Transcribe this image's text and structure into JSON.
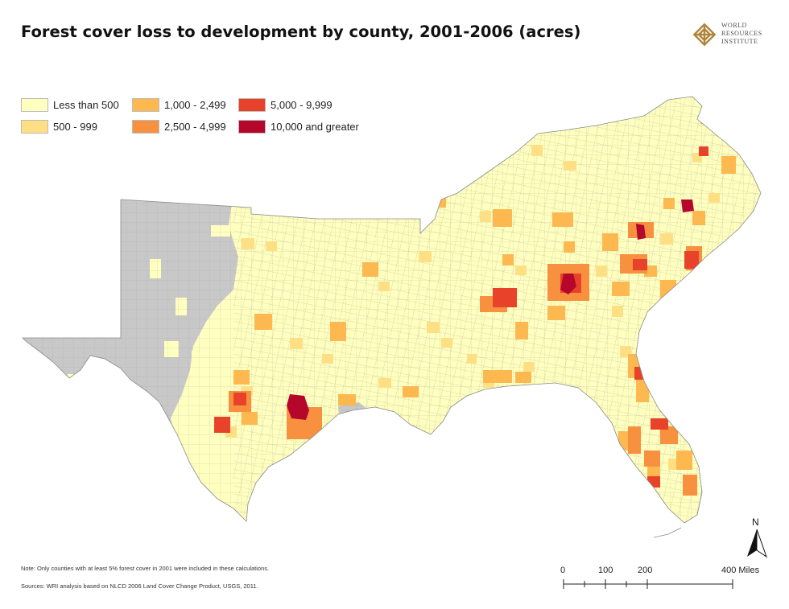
{
  "title": "Forest cover loss to development by county, 2001-2006 (acres)",
  "logo": {
    "line1": "WORLD",
    "line2": "RESOURCES",
    "line3": "INSTITUTE",
    "icon": "wri-knot-icon",
    "color": "#b0843a"
  },
  "legend": {
    "items": [
      {
        "label": "Less than 500",
        "color": "#ffffc0"
      },
      {
        "label": "500 - 999",
        "color": "#fedf84"
      },
      {
        "label": "1,000 - 2,499",
        "color": "#fdb94f"
      },
      {
        "label": "2,500 - 4,999",
        "color": "#f7903f"
      },
      {
        "label": "5,000 - 9,999",
        "color": "#e8432a"
      },
      {
        "label": "10,000 and greater",
        "color": "#b5062b"
      }
    ],
    "no_data_color": "#c8c8c8"
  },
  "notes": {
    "note": "Note:  Only counties with at least 5% forest cover in 2001 were included in these calculations.",
    "sources": "Sources:  WRI analysis based on NLCD 2006 Land Cover Change Product, USGS, 2011."
  },
  "scale": {
    "ticks": [
      "0",
      "100",
      "200",
      "400 Miles"
    ]
  },
  "north": {
    "label": "N",
    "icon": "north-arrow-icon"
  }
}
